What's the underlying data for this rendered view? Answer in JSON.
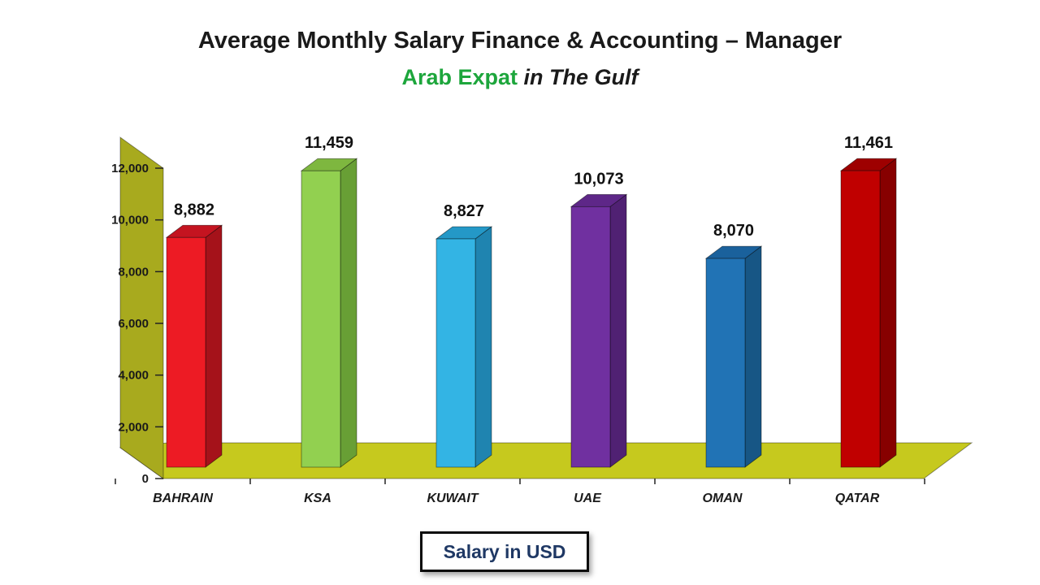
{
  "title": {
    "line1": "Average Monthly Salary Finance & Accounting – Manager",
    "line2_highlight": "Arab Expat",
    "line2_rest": " in The Gulf"
  },
  "footer": {
    "label": "Salary in USD"
  },
  "colors": {
    "title_text": "#1a1a1a",
    "subtitle_highlight": "#1DA63C",
    "footer_text": "#1F3864"
  },
  "chart_data": {
    "type": "bar",
    "projection": "3d",
    "title": "Average Monthly Salary Finance & Accounting – Manager",
    "subtitle": "Arab Expat in The Gulf",
    "units_label": "Salary in USD",
    "categories": [
      "BAHRAIN",
      "KSA",
      "KUWAIT",
      "UAE",
      "OMAN",
      "QATAR"
    ],
    "values": [
      8882,
      11459,
      8827,
      10073,
      8070,
      11461
    ],
    "value_labels": [
      "8,882",
      "11,459",
      "8,827",
      "10,073",
      "8,070",
      "11,461"
    ],
    "bar_colors": [
      {
        "front": "#ED1B24",
        "side": "#A5121A",
        "top": "#C41420"
      },
      {
        "front": "#92D050",
        "side": "#689F35",
        "top": "#7EB73F"
      },
      {
        "front": "#33B4E4",
        "side": "#1F84B0",
        "top": "#2498C7"
      },
      {
        "front": "#7030A0",
        "side": "#502173",
        "top": "#5E2788"
      },
      {
        "front": "#2173B5",
        "side": "#175685",
        "top": "#1A619C"
      },
      {
        "front": "#C00000",
        "side": "#870000",
        "top": "#9E0000"
      }
    ],
    "xlabel": "",
    "ylabel": "",
    "ylim": [
      0,
      12000
    ],
    "ytick_step": 2000,
    "ytick_labels": [
      "0",
      "2,000",
      "4,000",
      "6,000",
      "8,000",
      "10,000",
      "12,000"
    ],
    "grid": false,
    "legend_position": "none",
    "wall_color": "#A8AA1E",
    "floor_color": "#C6C91E"
  }
}
